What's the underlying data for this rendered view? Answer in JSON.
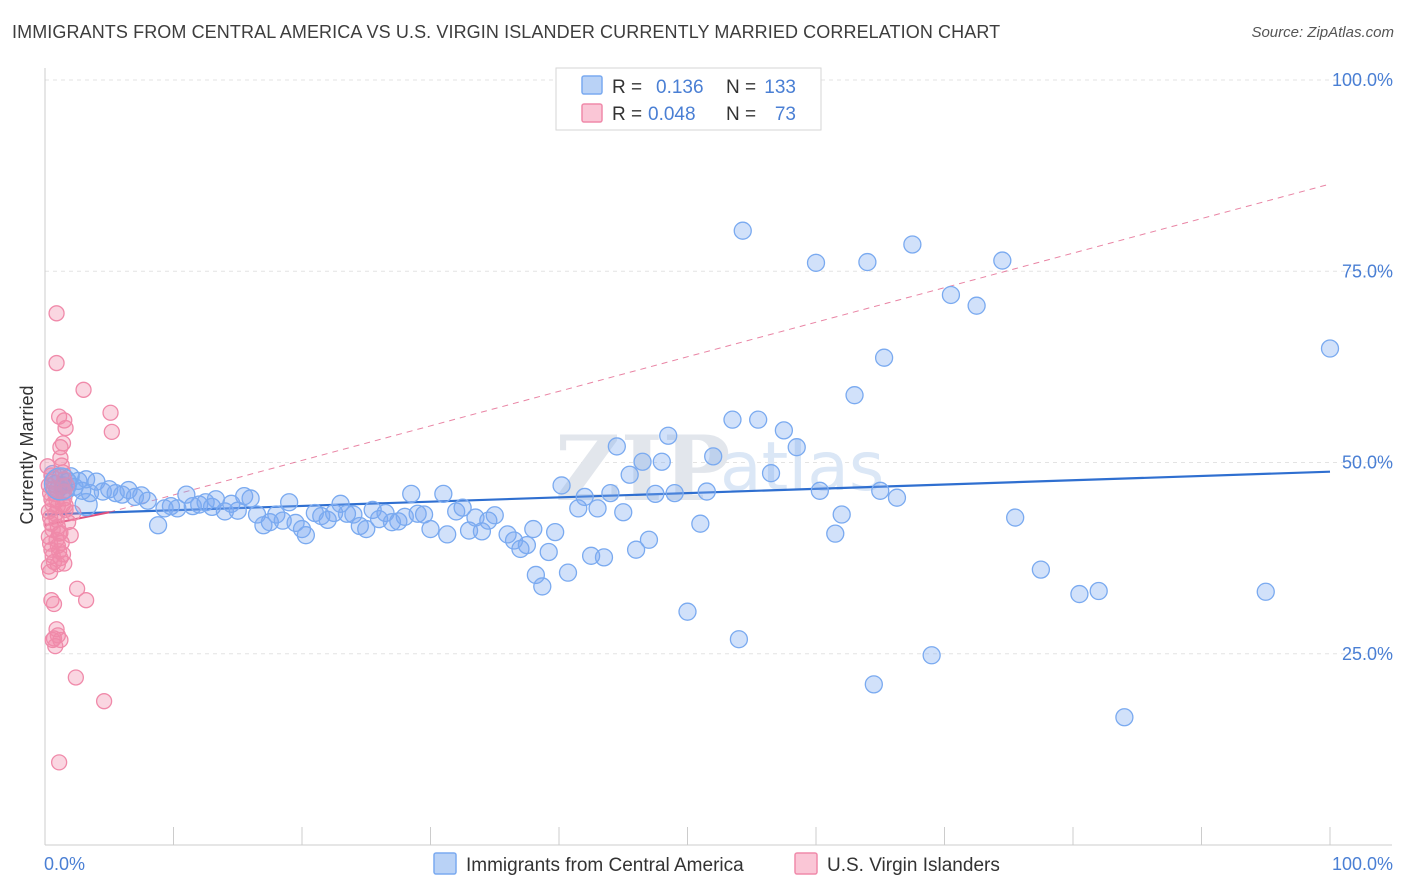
{
  "header": {
    "title": "IMMIGRANTS FROM CENTRAL AMERICA VS U.S. VIRGIN ISLANDER CURRENTLY MARRIED CORRELATION CHART",
    "source": "Source: ZipAtlas.com"
  },
  "watermark": {
    "zip": "ZIP",
    "atlas": "atlas"
  },
  "chart_data": {
    "type": "scatter",
    "title": "IMMIGRANTS FROM CENTRAL AMERICA VS U.S. VIRGIN ISLANDER CURRENTLY MARRIED CORRELATION CHART",
    "xlabel": "",
    "ylabel": "Currently Married",
    "xlim": [
      0,
      100
    ],
    "ylim": [
      0,
      100
    ],
    "x_tick_labels": [
      "0.0%",
      "100.0%"
    ],
    "y_ticks": [
      25,
      50,
      75,
      100
    ],
    "y_tick_labels": [
      "25.0%",
      "50.0%",
      "75.0%",
      "100.0%"
    ],
    "grid": true,
    "legend_placement": "bottom-center",
    "stats_box": {
      "rows": [
        {
          "r_label": "R =",
          "r_value": "0.136",
          "n_label": "N =",
          "n_value": "133"
        },
        {
          "r_label": "R =",
          "r_value": "0.048",
          "n_label": "N =",
          "n_value": "73"
        }
      ]
    },
    "series": [
      {
        "name": "Immigrants from Central America",
        "color": "#7aaaf0",
        "line_color": "#2f6fd0",
        "trend": {
          "x": [
            0,
            100
          ],
          "y": [
            43.2,
            48.8
          ]
        },
        "points": [
          [
            0.6,
            48.5
          ],
          [
            0.8,
            47.2
          ],
          [
            1.0,
            46.5
          ],
          [
            1.2,
            48.0
          ],
          [
            1.4,
            47.0
          ],
          [
            1.6,
            46.2
          ],
          [
            1.8,
            47.5
          ],
          [
            2.0,
            48.2
          ],
          [
            2.3,
            46.8
          ],
          [
            2.6,
            47.6
          ],
          [
            2.9,
            46.3
          ],
          [
            3.2,
            47.8
          ],
          [
            3.5,
            46.0
          ],
          [
            4.0,
            47.5
          ],
          [
            4.5,
            46.2
          ],
          [
            5.0,
            46.5
          ],
          [
            5.5,
            46.0
          ],
          [
            6.0,
            45.8
          ],
          [
            6.5,
            46.4
          ],
          [
            7.0,
            45.5
          ],
          [
            7.5,
            45.7
          ],
          [
            8.0,
            45.0
          ],
          [
            8.8,
            41.8
          ],
          [
            9.3,
            44.0
          ],
          [
            9.8,
            44.3
          ],
          [
            10.3,
            44.0
          ],
          [
            11.0,
            45.8
          ],
          [
            11.5,
            44.3
          ],
          [
            12.0,
            44.5
          ],
          [
            12.5,
            44.8
          ],
          [
            13.0,
            44.2
          ],
          [
            13.3,
            45.2
          ],
          [
            14.0,
            43.6
          ],
          [
            14.5,
            44.6
          ],
          [
            15.0,
            43.7
          ],
          [
            15.5,
            45.6
          ],
          [
            16.0,
            45.3
          ],
          [
            16.5,
            43.2
          ],
          [
            17.0,
            41.8
          ],
          [
            17.5,
            42.2
          ],
          [
            18.0,
            43.2
          ],
          [
            18.5,
            42.4
          ],
          [
            19.0,
            44.8
          ],
          [
            19.5,
            42.1
          ],
          [
            20.0,
            41.3
          ],
          [
            20.3,
            40.5
          ],
          [
            21.0,
            43.4
          ],
          [
            21.5,
            43.0
          ],
          [
            22.0,
            42.5
          ],
          [
            22.5,
            43.4
          ],
          [
            23.0,
            44.6
          ],
          [
            23.5,
            43.3
          ],
          [
            24.0,
            43.2
          ],
          [
            24.5,
            41.7
          ],
          [
            25.0,
            41.3
          ],
          [
            25.5,
            43.8
          ],
          [
            26.0,
            42.6
          ],
          [
            26.5,
            43.4
          ],
          [
            27.0,
            42.2
          ],
          [
            27.5,
            42.3
          ],
          [
            28.0,
            42.9
          ],
          [
            28.5,
            45.9
          ],
          [
            29.0,
            43.3
          ],
          [
            29.5,
            43.2
          ],
          [
            30.0,
            41.3
          ],
          [
            31.0,
            45.9
          ],
          [
            31.3,
            40.6
          ],
          [
            32.0,
            43.6
          ],
          [
            32.5,
            44.1
          ],
          [
            33.0,
            41.1
          ],
          [
            33.5,
            42.8
          ],
          [
            34.0,
            41.0
          ],
          [
            34.5,
            42.4
          ],
          [
            35.0,
            43.1
          ],
          [
            36.0,
            40.6
          ],
          [
            36.5,
            39.8
          ],
          [
            37.0,
            38.7
          ],
          [
            37.5,
            39.2
          ],
          [
            38.0,
            41.3
          ],
          [
            38.2,
            35.3
          ],
          [
            38.7,
            33.8
          ],
          [
            39.2,
            38.3
          ],
          [
            39.7,
            40.9
          ],
          [
            40.2,
            47.0
          ],
          [
            40.7,
            35.6
          ],
          [
            41.5,
            44.0
          ],
          [
            42.0,
            45.5
          ],
          [
            42.5,
            37.8
          ],
          [
            43.0,
            44.0
          ],
          [
            43.5,
            37.6
          ],
          [
            44.0,
            46.0
          ],
          [
            44.5,
            52.1
          ],
          [
            45.0,
            43.5
          ],
          [
            45.5,
            48.4
          ],
          [
            46.0,
            38.6
          ],
          [
            46.5,
            50.1
          ],
          [
            47.0,
            39.9
          ],
          [
            47.5,
            45.9
          ],
          [
            48.0,
            50.1
          ],
          [
            48.5,
            53.5
          ],
          [
            49.0,
            46.0
          ],
          [
            50.0,
            30.5
          ],
          [
            51.0,
            42.0
          ],
          [
            51.5,
            46.2
          ],
          [
            52.0,
            50.8
          ],
          [
            53.5,
            55.6
          ],
          [
            54.0,
            26.9
          ],
          [
            54.3,
            80.3
          ],
          [
            55.5,
            55.6
          ],
          [
            56.5,
            48.6
          ],
          [
            57.5,
            54.2
          ],
          [
            58.5,
            52.0
          ],
          [
            60.0,
            76.1
          ],
          [
            60.3,
            46.3
          ],
          [
            61.5,
            40.7
          ],
          [
            62.0,
            43.2
          ],
          [
            63.0,
            58.8
          ],
          [
            64.0,
            76.2
          ],
          [
            64.5,
            21.0
          ],
          [
            65.0,
            46.3
          ],
          [
            65.3,
            63.7
          ],
          [
            66.3,
            45.4
          ],
          [
            67.5,
            78.5
          ],
          [
            69.0,
            24.8
          ],
          [
            70.5,
            71.9
          ],
          [
            72.5,
            70.5
          ],
          [
            74.5,
            76.4
          ],
          [
            75.5,
            42.8
          ],
          [
            77.5,
            36.0
          ],
          [
            80.5,
            32.8
          ],
          [
            82.0,
            33.2
          ],
          [
            84.0,
            16.7
          ],
          [
            95.0,
            33.1
          ],
          [
            100.0,
            64.9
          ]
        ]
      },
      {
        "name": "U.S. Virgin Islanders",
        "color": "#f08aaa",
        "line_color": "#e0507e",
        "trend": {
          "x": [
            0,
            5
          ],
          "y": [
            41.8,
            43.5
          ]
        },
        "trend_extension": {
          "x": [
            5,
            100
          ],
          "y": [
            43.5,
            86.4
          ]
        },
        "points": [
          [
            0.2,
            49.5
          ],
          [
            0.3,
            47.0
          ],
          [
            0.4,
            46.0
          ],
          [
            0.5,
            45.2
          ],
          [
            0.6,
            44.5
          ],
          [
            0.3,
            43.6
          ],
          [
            0.4,
            42.8
          ],
          [
            0.5,
            42.0
          ],
          [
            0.6,
            41.2
          ],
          [
            0.3,
            40.3
          ],
          [
            0.4,
            39.4
          ],
          [
            0.5,
            38.6
          ],
          [
            0.6,
            37.8
          ],
          [
            0.7,
            37.0
          ],
          [
            0.3,
            36.4
          ],
          [
            0.4,
            35.7
          ],
          [
            0.5,
            48.3
          ],
          [
            0.6,
            47.5
          ],
          [
            0.7,
            46.6
          ],
          [
            0.8,
            45.9
          ],
          [
            0.9,
            45.0
          ],
          [
            1.0,
            44.3
          ],
          [
            0.8,
            43.3
          ],
          [
            0.9,
            42.5
          ],
          [
            1.0,
            41.6
          ],
          [
            1.1,
            40.7
          ],
          [
            0.9,
            39.9
          ],
          [
            1.0,
            39.1
          ],
          [
            1.1,
            38.4
          ],
          [
            1.2,
            37.5
          ],
          [
            1.0,
            36.7
          ],
          [
            1.2,
            50.6
          ],
          [
            1.3,
            49.6
          ],
          [
            1.4,
            48.7
          ],
          [
            1.5,
            47.8
          ],
          [
            1.3,
            46.9
          ],
          [
            1.4,
            46.1
          ],
          [
            1.5,
            45.3
          ],
          [
            1.6,
            44.4
          ],
          [
            1.2,
            40.8
          ],
          [
            1.3,
            39.5
          ],
          [
            1.4,
            38.0
          ],
          [
            1.5,
            36.8
          ],
          [
            0.9,
            69.5
          ],
          [
            0.9,
            63.0
          ],
          [
            1.4,
            52.5
          ],
          [
            1.5,
            55.5
          ],
          [
            1.6,
            54.5
          ],
          [
            1.1,
            56.0
          ],
          [
            1.2,
            52.0
          ],
          [
            1.8,
            42.2
          ],
          [
            1.7,
            47.0
          ],
          [
            1.5,
            46.2
          ],
          [
            1.4,
            44.5
          ],
          [
            1.6,
            43.8
          ],
          [
            2.0,
            40.5
          ],
          [
            0.5,
            32.0
          ],
          [
            0.7,
            31.5
          ],
          [
            2.5,
            33.5
          ],
          [
            3.2,
            32.0
          ],
          [
            0.9,
            28.2
          ],
          [
            1.0,
            27.4
          ],
          [
            0.6,
            26.8
          ],
          [
            0.8,
            26.0
          ],
          [
            1.2,
            26.8
          ],
          [
            0.7,
            27.0
          ],
          [
            2.4,
            21.9
          ],
          [
            4.6,
            18.8
          ],
          [
            1.1,
            10.8
          ],
          [
            3.0,
            59.5
          ],
          [
            5.1,
            56.5
          ],
          [
            5.2,
            54.0
          ],
          [
            2.2,
            43.4
          ]
        ]
      }
    ]
  },
  "legend": {
    "items": [
      {
        "label": "Immigrants from Central America",
        "color": "#7aaaf0"
      },
      {
        "label": "U.S. Virgin Islanders",
        "color": "#f08aaa"
      }
    ]
  }
}
